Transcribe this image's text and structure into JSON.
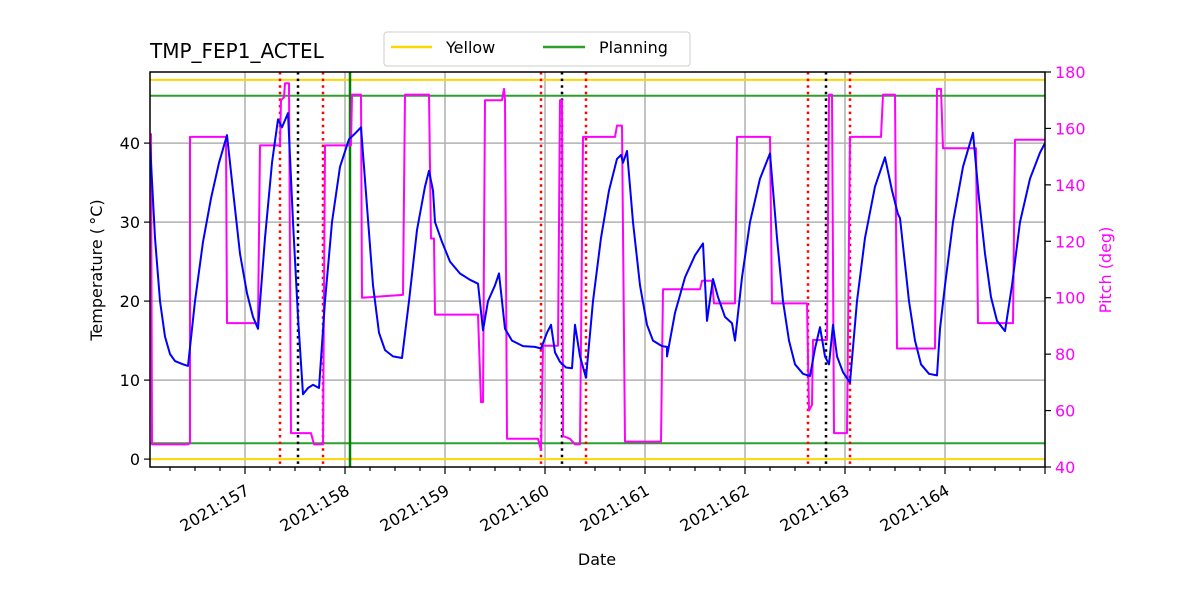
{
  "chart_data": {
    "type": "line",
    "title": "TMP_FEP1_ACTEL",
    "xlabel": "Date",
    "ylabel": "Temperature ($^\\circ$C)",
    "ylabel_display": "Temperature ( °C)",
    "y2label": "Pitch (deg)",
    "xlim": [
      156.05,
      165.0
    ],
    "ylim": [
      -1,
      49
    ],
    "y2lim": [
      40,
      180
    ],
    "grid": true,
    "x_tick_labels": [
      "2021:157",
      "2021:158",
      "2021:159",
      "2021:160",
      "2021:161",
      "2021:162",
      "2021:163",
      "2021:164"
    ],
    "x_ticks": [
      157,
      158,
      159,
      160,
      161,
      162,
      163,
      164
    ],
    "y_ticks": [
      0,
      10,
      20,
      30,
      40
    ],
    "y2_ticks": [
      40,
      60,
      80,
      100,
      120,
      140,
      160,
      180
    ],
    "legend": {
      "position": "top-center-outside",
      "entries": [
        {
          "label": "Yellow",
          "color": "#ffd700"
        },
        {
          "label": "Planning",
          "color": "#2ca02c"
        }
      ]
    },
    "limits": [
      {
        "name": "Yellow upper",
        "value": 48,
        "color": "#ffd700"
      },
      {
        "name": "Planning upper",
        "value": 46,
        "color": "#2ca02c"
      },
      {
        "name": "Planning lower",
        "value": 2,
        "color": "#2ca02c"
      },
      {
        "name": "Yellow lower",
        "value": 0,
        "color": "#ffd700"
      }
    ],
    "vertical_markers": [
      {
        "x": 157.35,
        "color": "#ff0000",
        "style": "dotted"
      },
      {
        "x": 157.53,
        "color": "#000000",
        "style": "dotted"
      },
      {
        "x": 157.78,
        "color": "#ff0000",
        "style": "dotted"
      },
      {
        "x": 158.05,
        "color": "#008000",
        "style": "solid"
      },
      {
        "x": 159.96,
        "color": "#ff0000",
        "style": "dotted"
      },
      {
        "x": 160.17,
        "color": "#000000",
        "style": "dotted"
      },
      {
        "x": 160.41,
        "color": "#ff0000",
        "style": "dotted"
      },
      {
        "x": 162.63,
        "color": "#ff0000",
        "style": "dotted"
      },
      {
        "x": 162.81,
        "color": "#000000",
        "style": "dotted"
      },
      {
        "x": 163.05,
        "color": "#ff0000",
        "style": "dotted"
      }
    ],
    "series": [
      {
        "name": "TMP_FEP1_ACTEL",
        "axis": "left",
        "color": "#0000ff",
        "points": [
          [
            156.05,
            40.0
          ],
          [
            156.1,
            28.0
          ],
          [
            156.15,
            20.0
          ],
          [
            156.2,
            15.5
          ],
          [
            156.25,
            13.3
          ],
          [
            156.3,
            12.4
          ],
          [
            156.38,
            12.0
          ],
          [
            156.43,
            11.8
          ],
          [
            156.5,
            20.0
          ],
          [
            156.58,
            27.5
          ],
          [
            156.66,
            33.0
          ],
          [
            156.74,
            37.5
          ],
          [
            156.82,
            41.0
          ],
          [
            156.88,
            34.0
          ],
          [
            156.95,
            26.0
          ],
          [
            157.02,
            21.0
          ],
          [
            157.08,
            18.0
          ],
          [
            157.13,
            16.5
          ],
          [
            157.2,
            28.0
          ],
          [
            157.27,
            37.5
          ],
          [
            157.33,
            43.0
          ],
          [
            157.37,
            42.0
          ],
          [
            157.43,
            43.8
          ],
          [
            157.48,
            30.0
          ],
          [
            157.53,
            18.0
          ],
          [
            157.58,
            8.2
          ],
          [
            157.63,
            9.0
          ],
          [
            157.68,
            9.4
          ],
          [
            157.74,
            9.0
          ],
          [
            157.8,
            20.0
          ],
          [
            157.87,
            30.0
          ],
          [
            157.95,
            37.0
          ],
          [
            158.04,
            40.5
          ],
          [
            158.1,
            41.2
          ],
          [
            158.16,
            42.0
          ],
          [
            158.22,
            32.0
          ],
          [
            158.28,
            22.0
          ],
          [
            158.34,
            16.0
          ],
          [
            158.4,
            13.8
          ],
          [
            158.48,
            13.0
          ],
          [
            158.57,
            12.8
          ],
          [
            158.64,
            20.0
          ],
          [
            158.72,
            29.0
          ],
          [
            158.8,
            34.5
          ],
          [
            158.84,
            36.5
          ],
          [
            158.88,
            34.0
          ],
          [
            158.9,
            30.0
          ],
          [
            158.97,
            27.5
          ],
          [
            159.05,
            25.0
          ],
          [
            159.15,
            23.5
          ],
          [
            159.25,
            22.7
          ],
          [
            159.33,
            22.2
          ],
          [
            159.38,
            16.3
          ],
          [
            159.43,
            20.0
          ],
          [
            159.5,
            22.0
          ],
          [
            159.54,
            23.5
          ],
          [
            159.6,
            16.5
          ],
          [
            159.67,
            15.0
          ],
          [
            159.78,
            14.3
          ],
          [
            159.9,
            14.2
          ],
          [
            159.96,
            14.0
          ],
          [
            160.02,
            16.0
          ],
          [
            160.06,
            17.0
          ],
          [
            160.1,
            13.5
          ],
          [
            160.15,
            12.3
          ],
          [
            160.21,
            11.6
          ],
          [
            160.27,
            11.5
          ],
          [
            160.3,
            17.0
          ],
          [
            160.35,
            13.0
          ],
          [
            160.41,
            10.3
          ],
          [
            160.48,
            20.0
          ],
          [
            160.56,
            28.0
          ],
          [
            160.64,
            34.0
          ],
          [
            160.72,
            38.0
          ],
          [
            160.76,
            38.5
          ],
          [
            160.78,
            37.5
          ],
          [
            160.82,
            39.0
          ],
          [
            160.88,
            30.0
          ],
          [
            160.95,
            22.0
          ],
          [
            161.02,
            17.0
          ],
          [
            161.08,
            15.0
          ],
          [
            161.17,
            14.3
          ],
          [
            161.22,
            14.2
          ],
          [
            161.22,
            13.0
          ],
          [
            161.3,
            18.5
          ],
          [
            161.4,
            23.0
          ],
          [
            161.5,
            25.8
          ],
          [
            161.58,
            27.3
          ],
          [
            161.62,
            17.5
          ],
          [
            161.68,
            22.8
          ],
          [
            161.73,
            20.5
          ],
          [
            161.8,
            18.0
          ],
          [
            161.87,
            17.2
          ],
          [
            161.9,
            15.0
          ],
          [
            161.97,
            23.0
          ],
          [
            162.05,
            30.0
          ],
          [
            162.15,
            35.5
          ],
          [
            162.25,
            38.7
          ],
          [
            162.32,
            28.0
          ],
          [
            162.38,
            20.0
          ],
          [
            162.44,
            15.0
          ],
          [
            162.5,
            12.0
          ],
          [
            162.58,
            10.8
          ],
          [
            162.65,
            10.5
          ],
          [
            162.7,
            14.0
          ],
          [
            162.75,
            16.7
          ],
          [
            162.8,
            13.0
          ],
          [
            162.84,
            12.0
          ],
          [
            162.88,
            17.0
          ],
          [
            162.92,
            13.0
          ],
          [
            162.98,
            11.0
          ],
          [
            163.05,
            9.7
          ],
          [
            163.12,
            20.0
          ],
          [
            163.2,
            28.0
          ],
          [
            163.3,
            34.5
          ],
          [
            163.4,
            38.2
          ],
          [
            163.47,
            34.0
          ],
          [
            163.53,
            31.0
          ],
          [
            163.55,
            30.5
          ],
          [
            163.58,
            27.0
          ],
          [
            163.64,
            20.0
          ],
          [
            163.7,
            15.0
          ],
          [
            163.76,
            12.0
          ],
          [
            163.84,
            10.8
          ],
          [
            163.92,
            10.6
          ],
          [
            163.95,
            16.5
          ],
          [
            164.0,
            22.0
          ],
          [
            164.08,
            30.0
          ],
          [
            164.18,
            37.0
          ],
          [
            164.28,
            41.3
          ],
          [
            164.34,
            33.0
          ],
          [
            164.4,
            26.0
          ],
          [
            164.46,
            20.5
          ],
          [
            164.52,
            17.5
          ],
          [
            164.6,
            16.2
          ],
          [
            164.67,
            22.0
          ],
          [
            164.75,
            30.0
          ],
          [
            164.85,
            35.5
          ],
          [
            164.95,
            38.8
          ],
          [
            165.0,
            40.0
          ]
        ]
      },
      {
        "name": "Pitch",
        "axis": "right",
        "color": "#ff00ff",
        "points": [
          [
            156.05,
            158
          ],
          [
            156.06,
            158
          ],
          [
            156.07,
            48
          ],
          [
            156.43,
            48
          ],
          [
            156.45,
            48.5
          ],
          [
            156.45,
            157
          ],
          [
            156.81,
            157
          ],
          [
            156.82,
            91
          ],
          [
            157.13,
            91
          ],
          [
            157.15,
            154
          ],
          [
            157.35,
            154
          ],
          [
            157.36,
            170
          ],
          [
            157.39,
            171
          ],
          [
            157.4,
            176
          ],
          [
            157.44,
            176
          ],
          [
            157.46,
            52
          ],
          [
            157.66,
            52
          ],
          [
            157.69,
            48
          ],
          [
            157.78,
            48
          ],
          [
            157.8,
            154
          ],
          [
            158.06,
            154
          ],
          [
            158.07,
            172
          ],
          [
            158.16,
            172
          ],
          [
            158.17,
            100
          ],
          [
            158.58,
            101
          ],
          [
            158.6,
            172
          ],
          [
            158.84,
            172
          ],
          [
            158.86,
            121
          ],
          [
            158.89,
            121
          ],
          [
            158.9,
            94
          ],
          [
            159.33,
            94
          ],
          [
            159.36,
            63
          ],
          [
            159.38,
            63
          ],
          [
            159.4,
            170
          ],
          [
            159.57,
            170
          ],
          [
            159.59,
            174
          ],
          [
            159.6,
            170
          ],
          [
            159.62,
            50
          ],
          [
            159.93,
            50
          ],
          [
            159.96,
            46
          ],
          [
            159.98,
            83
          ],
          [
            160.13,
            83
          ],
          [
            160.15,
            170
          ],
          [
            160.17,
            170
          ],
          [
            160.18,
            51
          ],
          [
            160.25,
            50
          ],
          [
            160.3,
            48
          ],
          [
            160.35,
            48
          ],
          [
            160.38,
            157
          ],
          [
            160.7,
            157
          ],
          [
            160.72,
            161
          ],
          [
            160.77,
            161
          ],
          [
            160.8,
            49
          ],
          [
            161.16,
            49
          ],
          [
            161.18,
            103
          ],
          [
            161.55,
            103
          ],
          [
            161.57,
            106
          ],
          [
            161.67,
            106
          ],
          [
            161.69,
            98
          ],
          [
            161.9,
            98
          ],
          [
            161.92,
            157
          ],
          [
            162.25,
            157
          ],
          [
            162.27,
            98
          ],
          [
            162.62,
            98
          ],
          [
            162.64,
            60
          ],
          [
            162.67,
            62
          ],
          [
            162.68,
            85
          ],
          [
            162.82,
            85
          ],
          [
            162.84,
            172
          ],
          [
            162.87,
            172
          ],
          [
            162.89,
            52
          ],
          [
            163.02,
            52
          ],
          [
            163.05,
            157
          ],
          [
            163.36,
            157
          ],
          [
            163.38,
            172
          ],
          [
            163.5,
            172
          ],
          [
            163.52,
            82
          ],
          [
            163.9,
            82
          ],
          [
            163.92,
            174
          ],
          [
            163.96,
            174
          ],
          [
            163.98,
            153
          ],
          [
            164.31,
            153
          ],
          [
            164.33,
            91
          ],
          [
            164.68,
            91
          ],
          [
            164.7,
            156
          ],
          [
            165.0,
            156
          ]
        ]
      }
    ]
  }
}
